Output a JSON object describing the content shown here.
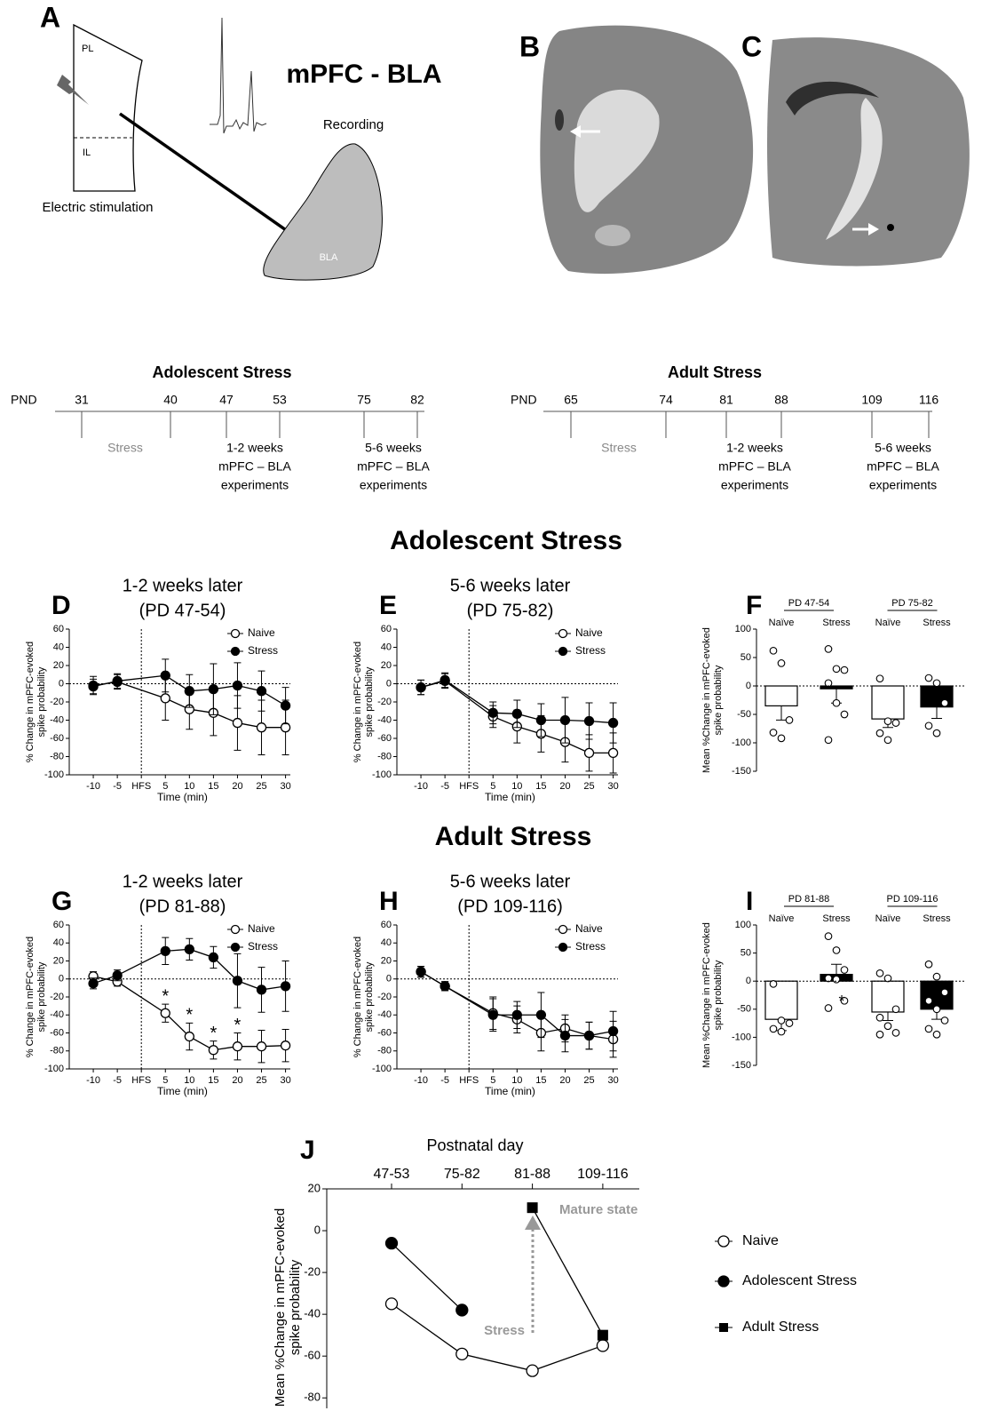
{
  "panel_a": {
    "letter": "A",
    "pl": "PL",
    "il": "IL",
    "title": "mPFC - BLA",
    "recording": "Recording",
    "stimulation": "Electric stimulation",
    "bla": "BLA"
  },
  "panel_b": {
    "letter": "B"
  },
  "panel_c": {
    "letter": "C"
  },
  "timelines": [
    {
      "title": "Adolescent Stress",
      "axis_label": "PND",
      "days": [
        31,
        40,
        47,
        53,
        75,
        82
      ],
      "periods": [
        {
          "lines": [
            "Stress"
          ]
        },
        {
          "lines": [
            "1-2 weeks",
            "mPFC – BLA",
            "experiments"
          ]
        },
        {
          "lines": [
            "5-6 weeks",
            "mPFC – BLA",
            "experiments"
          ]
        }
      ]
    },
    {
      "title": "Adult Stress",
      "axis_label": "PND",
      "days": [
        65,
        74,
        81,
        88,
        109,
        116
      ],
      "periods": [
        {
          "lines": [
            "Stress"
          ]
        },
        {
          "lines": [
            "1-2 weeks",
            "mPFC – BLA",
            "experiments"
          ]
        },
        {
          "lines": [
            "5-6 weeks",
            "mPFC – BLA",
            "experiments"
          ]
        }
      ]
    }
  ],
  "section_titles": [
    "Adolescent Stress",
    "Adult Stress"
  ],
  "chart_data": [
    {
      "type": "line",
      "letter": "D",
      "title": [
        "1-2 weeks later",
        "(PD 47-54)"
      ],
      "xlabel": "Time (min)",
      "ylabel": [
        "% Change in mPFC-evoked",
        "spike probability"
      ],
      "x": [
        -10,
        -5,
        5,
        10,
        15,
        20,
        25,
        30
      ],
      "series": [
        {
          "name": "Naive",
          "color": "#000000",
          "marker": "open-circle",
          "values": [
            -2,
            2,
            -16,
            -28,
            -32,
            -43,
            -48,
            -48
          ],
          "errors": [
            10,
            8,
            24,
            22,
            25,
            30,
            30,
            30
          ]
        },
        {
          "name": "Stress",
          "color": "#000000",
          "marker": "filled-circle",
          "values": [
            -3,
            3,
            9,
            -8,
            -6,
            -2,
            -8,
            -24
          ],
          "errors": [
            8,
            8,
            18,
            18,
            28,
            25,
            22,
            20
          ]
        }
      ],
      "xlim": [
        -15,
        31
      ],
      "ylim": [
        -100,
        60
      ],
      "xticks": [
        -10,
        -5,
        {
          "value": 0,
          "label": "HFS"
        },
        5,
        10,
        15,
        20,
        25,
        30
      ],
      "yticks": [
        -100,
        -80,
        -60,
        -40,
        -20,
        0,
        20,
        40,
        60
      ],
      "vline": 0,
      "hline": 0,
      "legend": "upper-right"
    },
    {
      "type": "line",
      "letter": "E",
      "title": [
        "5-6 weeks later",
        "(PD 75-82)"
      ],
      "xlabel": "Time (min)",
      "ylabel": [
        "% Change in mPFC-evoked",
        "spike probability"
      ],
      "x": [
        -10,
        -5,
        5,
        10,
        15,
        20,
        25,
        30
      ],
      "series": [
        {
          "name": "Naive",
          "color": "#000000",
          "marker": "open-circle",
          "values": [
            -4,
            3,
            -36,
            -47,
            -55,
            -64,
            -76,
            -76
          ],
          "errors": [
            8,
            8,
            12,
            18,
            20,
            22,
            20,
            22
          ]
        },
        {
          "name": "Stress",
          "color": "#000000",
          "marker": "filled-circle",
          "values": [
            -4,
            4,
            -32,
            -33,
            -40,
            -40,
            -41,
            -43
          ],
          "errors": [
            8,
            8,
            12,
            15,
            18,
            25,
            20,
            22
          ]
        }
      ],
      "xlim": [
        -15,
        31
      ],
      "ylim": [
        -100,
        60
      ],
      "xticks": [
        -10,
        -5,
        {
          "value": 0,
          "label": "HFS"
        },
        5,
        10,
        15,
        20,
        25,
        30
      ],
      "yticks": [
        -100,
        -80,
        -60,
        -40,
        -20,
        0,
        20,
        40,
        60
      ],
      "vline": 0,
      "hline": 0,
      "legend": "upper-right"
    },
    {
      "type": "bar",
      "letter": "F",
      "ylabel": [
        "Mean %Change in mPFC-evoked",
        "spike probability"
      ],
      "groups": [
        "PD 47-54",
        "PD 75-82"
      ],
      "categories": [
        "Naïve",
        "Stress",
        "Naïve",
        "Stress"
      ],
      "values": [
        -35,
        -5,
        -58,
        -37
      ],
      "errors": [
        25,
        25,
        15,
        20
      ],
      "colors": [
        "#ffffff",
        "#000000",
        "#ffffff",
        "#000000"
      ],
      "points": [
        [
          62,
          40,
          -60,
          -82,
          -92
        ],
        [
          65,
          30,
          28,
          5,
          -30,
          -50,
          -95
        ],
        [
          13,
          -62,
          -65,
          -83,
          -95
        ],
        [
          14,
          5,
          -30,
          -70,
          -83
        ]
      ],
      "ylim": [
        -150,
        100
      ],
      "yticks": [
        -150,
        -100,
        -50,
        0,
        50,
        100
      ],
      "hline": 0
    },
    {
      "type": "line",
      "letter": "G",
      "title": [
        "1-2 weeks later",
        "(PD 81-88)"
      ],
      "xlabel": "Time (min)",
      "ylabel": [
        "% Change in mPFC-evoked",
        "spike probability"
      ],
      "x": [
        -10,
        -5,
        5,
        10,
        15,
        20,
        25,
        30
      ],
      "series": [
        {
          "name": "Naive",
          "color": "#000000",
          "marker": "open-circle",
          "values": [
            3,
            -3,
            -38,
            -64,
            -79,
            -75,
            -75,
            -74
          ],
          "errors": [
            5,
            5,
            10,
            15,
            10,
            15,
            18,
            18
          ],
          "significance": [
            null,
            null,
            "*",
            "*",
            "*",
            "*",
            null,
            null
          ]
        },
        {
          "name": "Stress",
          "color": "#000000",
          "marker": "filled-circle",
          "values": [
            -5,
            4,
            31,
            33,
            24,
            -2,
            -12,
            -8
          ],
          "errors": [
            6,
            6,
            15,
            12,
            12,
            30,
            25,
            28
          ]
        }
      ],
      "xlim": [
        -15,
        31
      ],
      "ylim": [
        -100,
        60
      ],
      "xticks": [
        -10,
        -5,
        {
          "value": 0,
          "label": "HFS"
        },
        5,
        10,
        15,
        20,
        25,
        30
      ],
      "yticks": [
        -100,
        -80,
        -60,
        -40,
        -20,
        0,
        20,
        40,
        60
      ],
      "vline": 0,
      "hline": 0,
      "legend": "upper-right"
    },
    {
      "type": "line",
      "letter": "H",
      "title": [
        "5-6 weeks later",
        "(PD 109-116)"
      ],
      "xlabel": "Time (min)",
      "ylabel": [
        "% Change in mPFC-evoked",
        "spike probability"
      ],
      "x": [
        -10,
        -5,
        5,
        10,
        15,
        20,
        25,
        30
      ],
      "series": [
        {
          "name": "Naive",
          "color": "#000000",
          "marker": "open-circle",
          "values": [
            8,
            -8,
            -38,
            -45,
            -60,
            -55,
            -63,
            -67
          ],
          "errors": [
            6,
            5,
            18,
            15,
            20,
            15,
            15,
            20
          ]
        },
        {
          "name": "Stress",
          "color": "#000000",
          "marker": "filled-circle",
          "values": [
            8,
            -8,
            -40,
            -40,
            -40,
            -63,
            -63,
            -58
          ],
          "errors": [
            6,
            5,
            18,
            15,
            25,
            18,
            15,
            22
          ]
        }
      ],
      "xlim": [
        -15,
        31
      ],
      "ylim": [
        -100,
        60
      ],
      "xticks": [
        -10,
        -5,
        {
          "value": 0,
          "label": "HFS"
        },
        5,
        10,
        15,
        20,
        25,
        30
      ],
      "yticks": [
        -100,
        -80,
        -60,
        -40,
        -20,
        0,
        20,
        40,
        60
      ],
      "vline": 0,
      "hline": 0,
      "legend": "upper-right"
    },
    {
      "type": "bar",
      "letter": "I",
      "ylabel": [
        "Mean %Change in mPFC-evoked",
        "spike probability"
      ],
      "groups": [
        "PD 81-88",
        "PD 109-116"
      ],
      "categories": [
        "Naïve",
        "Stress",
        "Naïve",
        "Stress"
      ],
      "values": [
        -68,
        12,
        -55,
        -50
      ],
      "errors": [
        20,
        18,
        15,
        18
      ],
      "colors": [
        "#ffffff",
        "#000000",
        "#ffffff",
        "#000000"
      ],
      "points": [
        [
          -5,
          -70,
          -75,
          -85,
          -90
        ],
        [
          80,
          55,
          20,
          5,
          3,
          -35,
          -48
        ],
        [
          14,
          5,
          -50,
          -65,
          -80,
          -92,
          -95
        ],
        [
          30,
          8,
          -20,
          -35,
          -50,
          -70,
          -85,
          -95
        ]
      ],
      "significance": [
        null,
        "*",
        null,
        null
      ],
      "ylim": [
        -150,
        100
      ],
      "yticks": [
        -150,
        -100,
        -50,
        0,
        50,
        100
      ],
      "hline": 0
    },
    {
      "type": "category-line",
      "letter": "J",
      "title": "Postnatal day",
      "ylabel": [
        "Mean %Change in mPFC-evoked",
        "spike probability"
      ],
      "categories": [
        "47-53",
        "75-82",
        "81-88",
        "109-116"
      ],
      "series": [
        {
          "name": "Naive",
          "color": "#000000",
          "marker": "open-circle",
          "values": [
            -35,
            -59,
            -67,
            -55
          ]
        },
        {
          "name": "Adolescent Stress",
          "color": "#000000",
          "marker": "filled-circle",
          "values": [
            -6,
            -38,
            null,
            null
          ]
        },
        {
          "name": "Adult Stress",
          "color": "#000000",
          "marker": "filled-square",
          "values": [
            null,
            null,
            11,
            -50
          ]
        }
      ],
      "ylim": [
        -85,
        20
      ],
      "yticks": [
        -80,
        -60,
        -40,
        -20,
        0,
        20
      ],
      "annotations": [
        "Mature state",
        "Stress"
      ],
      "annotation_color": "#999999"
    }
  ]
}
